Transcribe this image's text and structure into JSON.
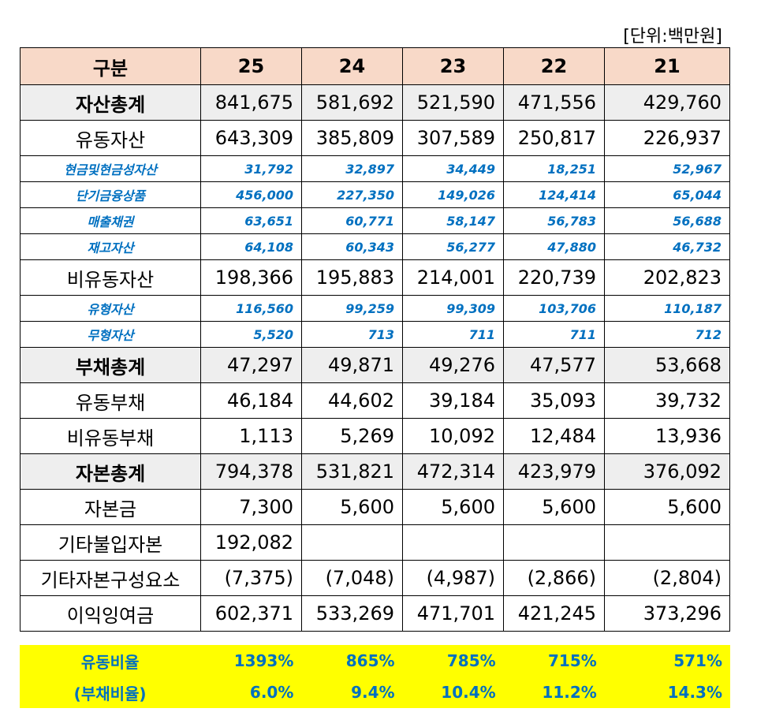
{
  "unit_label": "[단위:백만원]",
  "header": [
    "구분",
    "25",
    "24",
    "23",
    "22",
    "21"
  ],
  "rows": [
    {
      "kind": "total",
      "label": "자산총계",
      "values": [
        "841,675",
        "581,692",
        "521,590",
        "471,556",
        "429,760"
      ]
    },
    {
      "kind": "main",
      "label": "유동자산",
      "values": [
        "643,309",
        "385,809",
        "307,589",
        "250,817",
        "226,937"
      ]
    },
    {
      "kind": "sub",
      "label": "현금및현금성자산",
      "values": [
        "31,792",
        "32,897",
        "34,449",
        "18,251",
        "52,967"
      ]
    },
    {
      "kind": "sub",
      "label": "단기금융상품",
      "values": [
        "456,000",
        "227,350",
        "149,026",
        "124,414",
        "65,044"
      ]
    },
    {
      "kind": "sub",
      "label": "매출채권",
      "values": [
        "63,651",
        "60,771",
        "58,147",
        "56,783",
        "56,688"
      ]
    },
    {
      "kind": "sub",
      "label": "재고자산",
      "values": [
        "64,108",
        "60,343",
        "56,277",
        "47,880",
        "46,732"
      ]
    },
    {
      "kind": "main",
      "label": "비유동자산",
      "values": [
        "198,366",
        "195,883",
        "214,001",
        "220,739",
        "202,823"
      ]
    },
    {
      "kind": "sub",
      "label": "유형자산",
      "values": [
        "116,560",
        "99,259",
        "99,309",
        "103,706",
        "110,187"
      ]
    },
    {
      "kind": "sub",
      "label": "무형자산",
      "values": [
        "5,520",
        "713",
        "711",
        "711",
        "712"
      ]
    },
    {
      "kind": "total",
      "label": "부채총계",
      "values": [
        "47,297",
        "49,871",
        "49,276",
        "47,577",
        "53,668"
      ]
    },
    {
      "kind": "main",
      "label": "유동부채",
      "values": [
        "46,184",
        "44,602",
        "39,184",
        "35,093",
        "39,732"
      ]
    },
    {
      "kind": "main",
      "label": "비유동부채",
      "values": [
        "1,113",
        "5,269",
        "10,092",
        "12,484",
        "13,936"
      ]
    },
    {
      "kind": "total",
      "label": "자본총계",
      "values": [
        "794,378",
        "531,821",
        "472,314",
        "423,979",
        "376,092"
      ]
    },
    {
      "kind": "main",
      "label": "자본금",
      "values": [
        "7,300",
        "5,600",
        "5,600",
        "5,600",
        "5,600"
      ]
    },
    {
      "kind": "main",
      "label": "기타불입자본",
      "values": [
        "192,082",
        "",
        "",
        "",
        ""
      ]
    },
    {
      "kind": "main",
      "label": "기타자본구성요소",
      "values": [
        "(7,375)",
        "(7,048)",
        "(4,987)",
        "(2,866)",
        "(2,804)"
      ]
    },
    {
      "kind": "main",
      "label": "이익잉여금",
      "values": [
        "602,371",
        "533,269",
        "471,701",
        "421,245",
        "373,296"
      ]
    }
  ],
  "ratios": [
    {
      "label": "유동비율",
      "values": [
        "1393%",
        "865%",
        "785%",
        "715%",
        "571%"
      ]
    },
    {
      "label": "(부채비율)",
      "values": [
        "6.0%",
        "9.4%",
        "10.4%",
        "11.2%",
        "14.3%"
      ]
    }
  ],
  "colors": {
    "header_bg": "#f8d9c8",
    "total_bg": "#eeeeee",
    "sub_text": "#0070c0",
    "ratio_bg": "#ffff00",
    "ratio_text": "#0070c0"
  }
}
